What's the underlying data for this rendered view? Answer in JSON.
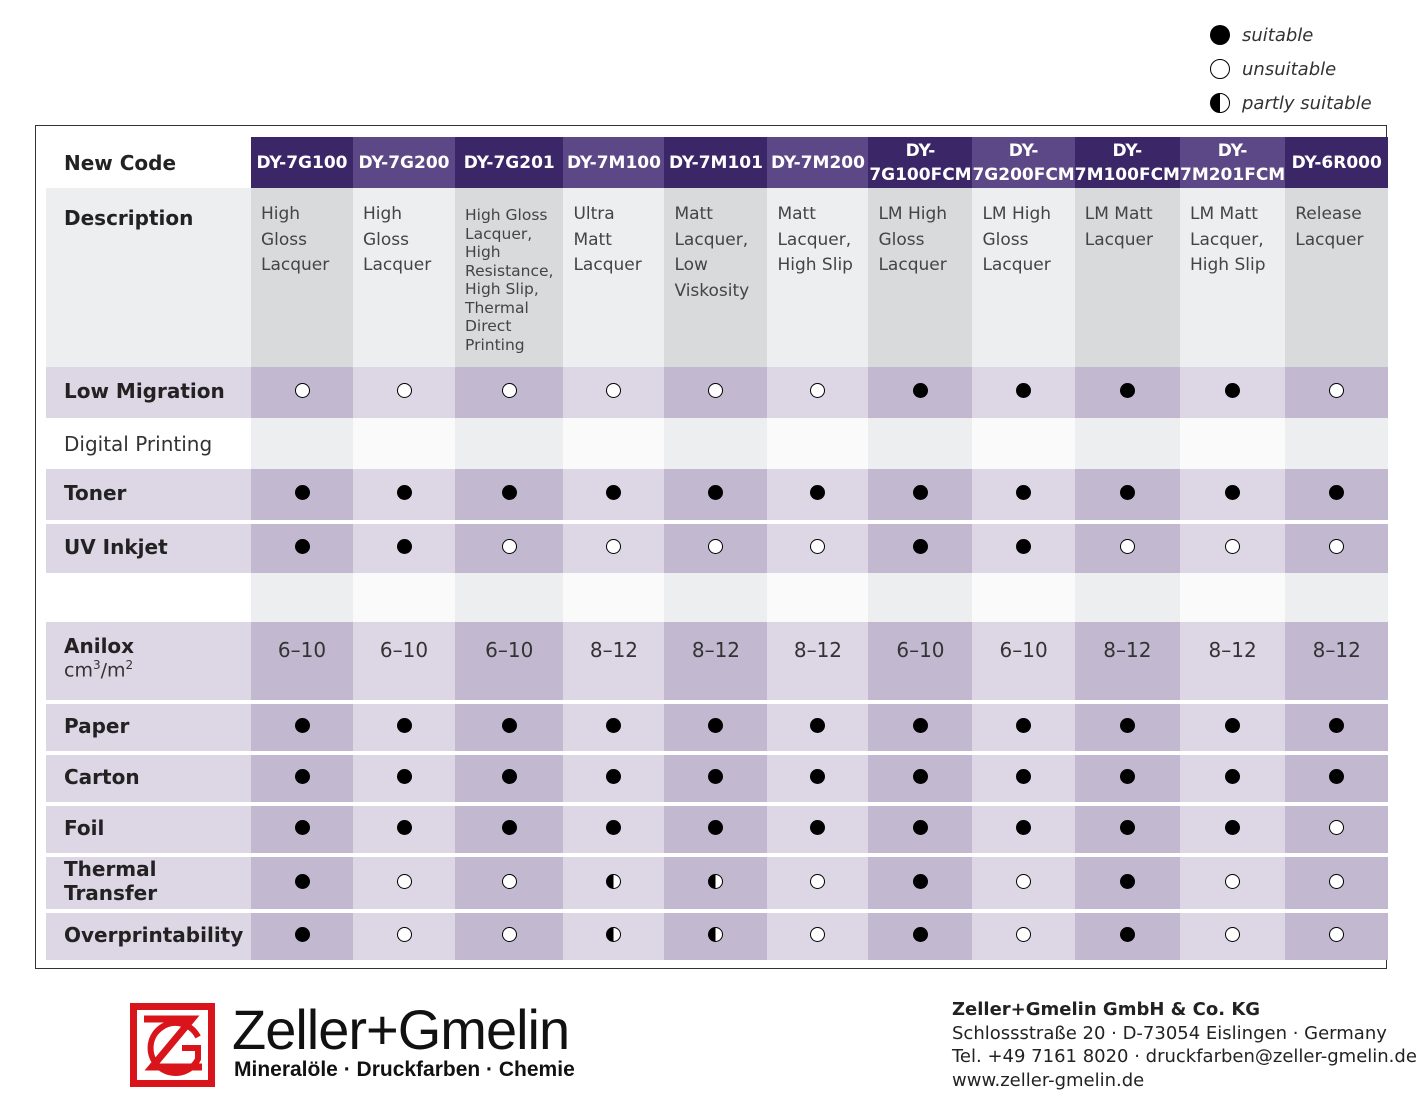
{
  "legend": [
    {
      "symbol": "full",
      "label": "suitable"
    },
    {
      "symbol": "empty",
      "label": "unsuitable"
    },
    {
      "symbol": "half",
      "label": "partly suitable"
    }
  ],
  "table": {
    "header_label": "New Code",
    "codes": [
      [
        "DY-7G100"
      ],
      [
        "DY-7G200"
      ],
      [
        "DY-7G201"
      ],
      [
        "DY-7M100"
      ],
      [
        "DY-7M101"
      ],
      [
        "DY-7M200"
      ],
      [
        "DY-",
        "7G100FCM"
      ],
      [
        "DY-",
        "7G200FCM"
      ],
      [
        "DY-",
        "7M100FCM"
      ],
      [
        "DY-",
        "7M201FCM"
      ],
      [
        "DY-6R000"
      ]
    ],
    "description_label": "Description",
    "descriptions": [
      "High Gloss Lacquer",
      "High Gloss Lacquer",
      "High Gloss Lacquer, High Resistance, High Slip, Thermal Direct Printing",
      "Ultra Matt Lacquer",
      "Matt Lacquer, Low Viskosity",
      "Matt Lacquer, High Slip",
      "LM High Gloss Lacquer",
      "LM High Gloss Lacquer",
      "LM Matt Lacquer",
      "LM Matt Lacquer, High Slip",
      "Release Lacquer"
    ],
    "low_migration": {
      "label": "Low Migration",
      "values": [
        "empty",
        "empty",
        "empty",
        "empty",
        "empty",
        "empty",
        "full",
        "full",
        "full",
        "full",
        "empty"
      ]
    },
    "digital_printing_label": "Digital Printing",
    "toner": {
      "label": "Toner",
      "values": [
        "full",
        "full",
        "full",
        "full",
        "full",
        "full",
        "full",
        "full",
        "full",
        "full",
        "full"
      ]
    },
    "uv_inkjet": {
      "label": "UV Inkjet",
      "values": [
        "full",
        "full",
        "empty",
        "empty",
        "empty",
        "empty",
        "full",
        "full",
        "empty",
        "empty",
        "empty"
      ]
    },
    "anilox": {
      "label": "Anilox",
      "unit_main": "cm",
      "unit_sup1": "3",
      "unit_mid": "/m",
      "unit_sup2": "2",
      "values": [
        "6–10",
        "6–10",
        "6–10",
        "8–12",
        "8–12",
        "8–12",
        "6–10",
        "6–10",
        "8–12",
        "8–12",
        "8–12"
      ]
    },
    "paper": {
      "label": "Paper",
      "values": [
        "full",
        "full",
        "full",
        "full",
        "full",
        "full",
        "full",
        "full",
        "full",
        "full",
        "full"
      ]
    },
    "carton": {
      "label": "Carton",
      "values": [
        "full",
        "full",
        "full",
        "full",
        "full",
        "full",
        "full",
        "full",
        "full",
        "full",
        "full"
      ]
    },
    "foil": {
      "label": "Foil",
      "values": [
        "full",
        "full",
        "full",
        "full",
        "full",
        "full",
        "full",
        "full",
        "full",
        "full",
        "empty"
      ]
    },
    "thermal_transfer": {
      "label": "Thermal Transfer",
      "values": [
        "full",
        "empty",
        "empty",
        "half",
        "half",
        "empty",
        "full",
        "empty",
        "full",
        "empty",
        "empty"
      ]
    },
    "overprintability": {
      "label": "Overprintability",
      "values": [
        "full",
        "empty",
        "empty",
        "half",
        "half",
        "empty",
        "full",
        "empty",
        "full",
        "empty",
        "empty"
      ]
    }
  },
  "footer": {
    "brand": "Zeller+Gmelin",
    "tagline": "Mineralöle · Druckfarben · Chemie",
    "company_name": "Zeller+Gmelin GmbH & Co. KG",
    "address": "Schlossstraße 20 · D-73054 Eislingen · Germany",
    "contact": "Tel. +49 7161 8020 · druckfarben@zeller-gmelin.de",
    "website": "www.zeller-gmelin.de"
  },
  "colors": {
    "header_dark": "#3b2667",
    "header_light": "#5c4886",
    "accent_red": "#d9141b"
  }
}
